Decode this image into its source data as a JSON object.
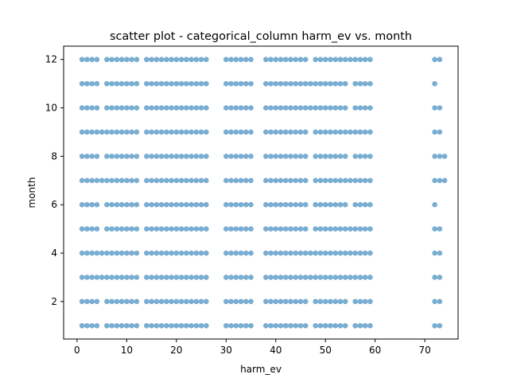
{
  "chart_data": {
    "type": "scatter",
    "title": "scatter plot - categorical_column harm_ev vs. month",
    "xlabel": "harm_ev",
    "ylabel": "month",
    "xlim": [
      -2.7,
      76.7
    ],
    "ylim": [
      0.45,
      12.55
    ],
    "xticks": [
      0,
      10,
      20,
      30,
      40,
      50,
      60,
      70
    ],
    "yticks": [
      2,
      4,
      6,
      8,
      10,
      12
    ],
    "grid": false,
    "color": "#1f77b4",
    "months": [
      1,
      2,
      3,
      4,
      5,
      6,
      7,
      8,
      9,
      10,
      11,
      12
    ],
    "x_values": [
      1,
      2,
      3,
      4,
      6,
      7,
      8,
      9,
      10,
      11,
      12,
      14,
      15,
      16,
      17,
      18,
      19,
      20,
      21,
      22,
      23,
      24,
      25,
      26,
      30,
      31,
      32,
      33,
      34,
      35,
      38,
      39,
      40,
      41,
      42,
      43,
      44,
      45,
      46,
      48,
      49,
      50,
      51,
      52,
      53,
      54,
      56,
      57,
      58,
      59
    ],
    "extra_points": [
      {
        "x": 5,
        "y": 4
      },
      {
        "x": 5,
        "y": 9
      },
      {
        "x": 5,
        "y": 7
      },
      {
        "x": 5,
        "y": 3
      },
      {
        "x": 47,
        "y": 11
      },
      {
        "x": 47,
        "y": 10
      },
      {
        "x": 47,
        "y": 4
      },
      {
        "x": 47,
        "y": 3
      },
      {
        "x": 55,
        "y": 12
      },
      {
        "x": 55,
        "y": 9
      },
      {
        "x": 55,
        "y": 7
      },
      {
        "x": 55,
        "y": 5
      },
      {
        "x": 55,
        "y": 4
      },
      {
        "x": 55,
        "y": 3
      },
      {
        "x": 72,
        "y": 12
      },
      {
        "x": 73,
        "y": 12
      },
      {
        "x": 72,
        "y": 11
      },
      {
        "x": 72,
        "y": 10
      },
      {
        "x": 73,
        "y": 10
      },
      {
        "x": 72,
        "y": 9
      },
      {
        "x": 73,
        "y": 9
      },
      {
        "x": 72,
        "y": 8
      },
      {
        "x": 73,
        "y": 8
      },
      {
        "x": 74,
        "y": 8
      },
      {
        "x": 72,
        "y": 7
      },
      {
        "x": 73,
        "y": 7
      },
      {
        "x": 74,
        "y": 7
      },
      {
        "x": 72,
        "y": 6
      },
      {
        "x": 72,
        "y": 5
      },
      {
        "x": 73,
        "y": 5
      },
      {
        "x": 72,
        "y": 4
      },
      {
        "x": 73,
        "y": 4
      },
      {
        "x": 72,
        "y": 3
      },
      {
        "x": 73,
        "y": 3
      },
      {
        "x": 72,
        "y": 2
      },
      {
        "x": 73,
        "y": 2
      },
      {
        "x": 72,
        "y": 1
      },
      {
        "x": 73,
        "y": 1
      }
    ]
  }
}
